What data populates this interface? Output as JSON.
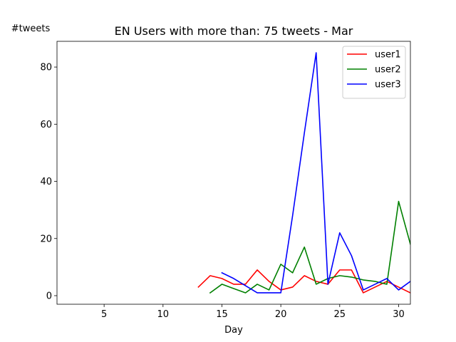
{
  "chart_data": {
    "type": "line",
    "title": "EN Users with more than: 75 tweets - Mar",
    "xlabel": "Day",
    "ylabel": "#tweets",
    "xlim": [
      1,
      31
    ],
    "ylim": [
      -3,
      89
    ],
    "xticks": [
      5,
      10,
      15,
      20,
      25,
      30
    ],
    "yticks": [
      0,
      20,
      40,
      60,
      80
    ],
    "legend_position": "top-right",
    "grid": false,
    "series": [
      {
        "name": "user1",
        "color": "#ff0000",
        "x": [
          13,
          14,
          15,
          16,
          17,
          18,
          19,
          20,
          21,
          22,
          23,
          24,
          25,
          26,
          27,
          28,
          29,
          30,
          31
        ],
        "y": [
          3,
          7,
          6,
          4,
          4,
          9,
          5,
          2,
          3,
          7,
          5,
          4,
          9,
          9,
          1,
          3,
          5,
          3,
          1
        ]
      },
      {
        "name": "user2",
        "color": "#008000",
        "x": [
          14,
          15,
          16,
          17,
          18,
          19,
          20,
          21,
          22,
          23,
          24,
          25,
          26,
          27,
          28,
          29,
          30,
          31
        ],
        "y": [
          1,
          4,
          2.5,
          1,
          4,
          2,
          11,
          8,
          17,
          4,
          6,
          7,
          6.5,
          5.5,
          5,
          4,
          33,
          18
        ]
      },
      {
        "name": "user3",
        "color": "#0000ff",
        "x": [
          15,
          16,
          17,
          18,
          19,
          20,
          21,
          22,
          23,
          24,
          25,
          26,
          27,
          28,
          29,
          30,
          31
        ],
        "y": [
          8,
          6,
          3.5,
          1,
          1,
          1,
          28,
          57,
          85,
          4,
          22,
          14,
          2,
          4,
          6,
          2,
          5
        ]
      }
    ]
  }
}
